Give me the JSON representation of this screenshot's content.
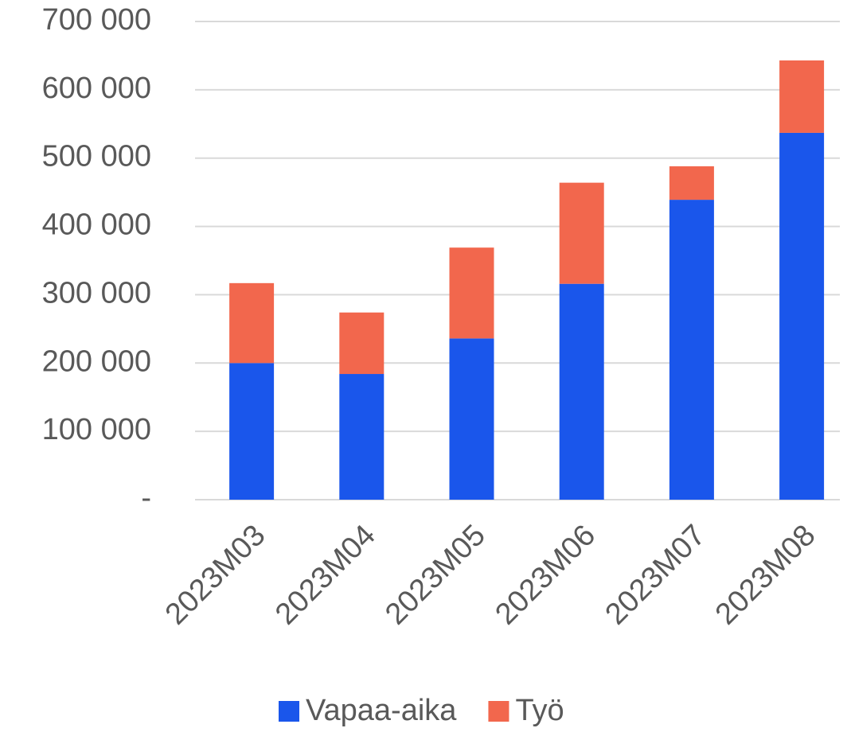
{
  "chart_data": {
    "type": "stacked_bar",
    "categories": [
      "2023M03",
      "2023M04",
      "2023M05",
      "2023M06",
      "2023M07",
      "2023M08"
    ],
    "series": [
      {
        "name": "Vapaa-aika",
        "color": "#1a56eb",
        "values": [
          200000,
          184000,
          236000,
          316000,
          439000,
          537000
        ]
      },
      {
        "name": "Työ",
        "color": "#f2674d",
        "values": [
          117000,
          90000,
          133000,
          148000,
          49000,
          106000
        ]
      }
    ],
    "ylim": [
      0,
      700000
    ],
    "yticks": [
      {
        "value": 0,
        "label": "-"
      },
      {
        "value": 100000,
        "label": "100 000"
      },
      {
        "value": 200000,
        "label": "200 000"
      },
      {
        "value": 300000,
        "label": "300 000"
      },
      {
        "value": 400000,
        "label": "400 000"
      },
      {
        "value": 500000,
        "label": "500 000"
      },
      {
        "value": 600000,
        "label": "600 000"
      },
      {
        "value": 700000,
        "label": "700 000"
      }
    ],
    "grid": true,
    "legend": "bottom"
  }
}
